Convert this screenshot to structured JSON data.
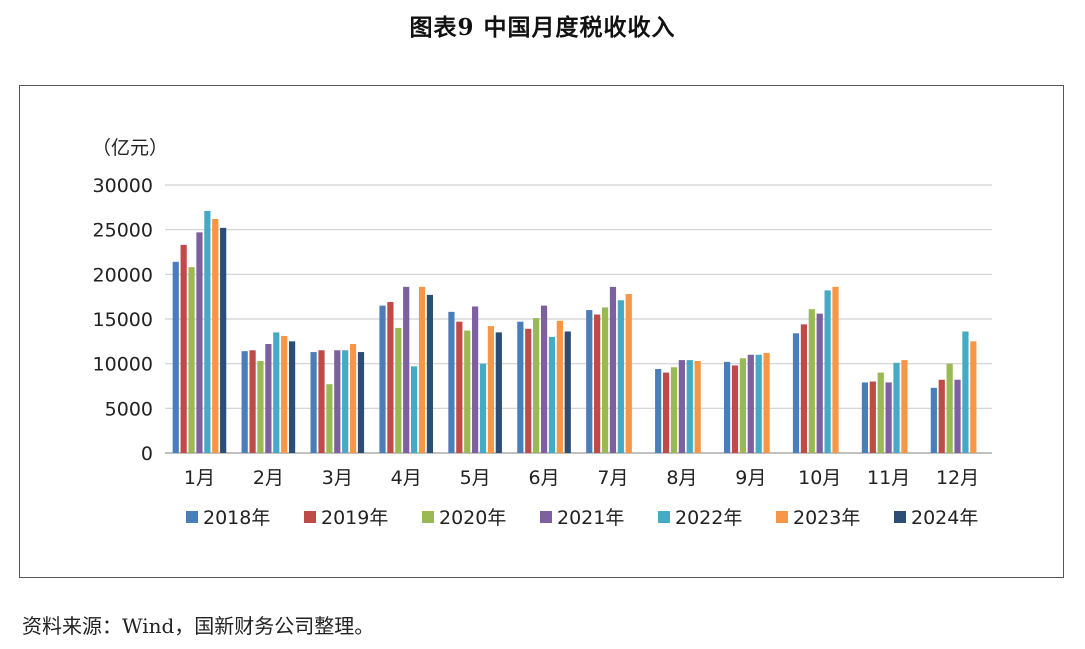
{
  "figure_title": "图表9  中国月度税收收入",
  "source_note": "资料来源：Wind，国新财务公司整理。",
  "chart_data": {
    "type": "bar",
    "unit_label": "（亿元）",
    "ylim": [
      0,
      30000
    ],
    "yticks": [
      "0",
      "5000",
      "10000",
      "15000",
      "20000",
      "25000",
      "30000"
    ],
    "grid": true,
    "legend_position": "bottom",
    "categories": [
      "1月",
      "2月",
      "3月",
      "4月",
      "5月",
      "6月",
      "7月",
      "8月",
      "9月",
      "10月",
      "11月",
      "12月"
    ],
    "series": [
      {
        "name": "2018年",
        "color": "#4a7ebb",
        "values": [
          21400,
          11400,
          11300,
          16500,
          15800,
          14700,
          16000,
          9400,
          10200,
          13400,
          7900,
          7300
        ]
      },
      {
        "name": "2019年",
        "color": "#be4b48",
        "values": [
          23300,
          11500,
          11500,
          16900,
          14700,
          13900,
          15500,
          9000,
          9800,
          14400,
          8000,
          8200
        ]
      },
      {
        "name": "2020年",
        "color": "#98b954",
        "values": [
          20800,
          10300,
          7700,
          14000,
          13700,
          15100,
          16300,
          9600,
          10600,
          16100,
          9000,
          10000
        ]
      },
      {
        "name": "2021年",
        "color": "#7d60a0",
        "values": [
          24700,
          12200,
          11500,
          18600,
          16400,
          16500,
          18600,
          10400,
          11000,
          15600,
          7900,
          8200
        ]
      },
      {
        "name": "2022年",
        "color": "#46aac5",
        "values": [
          27100,
          13500,
          11500,
          9700,
          10000,
          13000,
          17100,
          10400,
          11000,
          18200,
          10100,
          13600
        ]
      },
      {
        "name": "2023年",
        "color": "#f79646",
        "values": [
          26200,
          13100,
          12200,
          18600,
          14200,
          14800,
          17800,
          10300,
          11200,
          18600,
          10400,
          12500
        ]
      },
      {
        "name": "2024年",
        "color": "#2c4d75",
        "values": [
          25200,
          12500,
          11300,
          17700,
          13500,
          13600,
          null,
          null,
          null,
          null,
          null,
          null
        ]
      }
    ]
  }
}
